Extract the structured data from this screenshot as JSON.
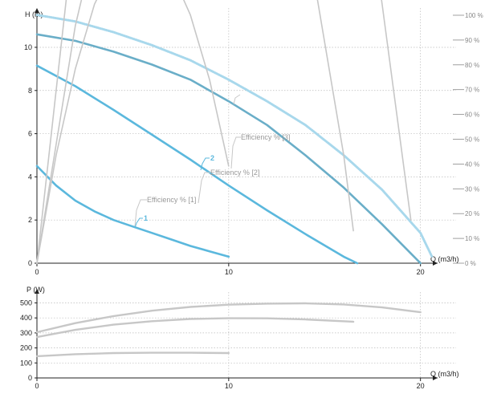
{
  "colors": {
    "pump_curve": "#5bb8dd",
    "max_curve": "#6aaec8",
    "efficiency_curve": "#c7c7c7",
    "power_curve": "#c7c7c7",
    "grid": "#bbbbbb",
    "text": "#222222",
    "secondary_text": "#888888"
  },
  "chart_data": [
    {
      "type": "line",
      "title": "",
      "ylabel": "H (m)",
      "xlabel": "Q (m3/h)",
      "xlim": [
        0,
        20.6
      ],
      "ylim": [
        0,
        11.3
      ],
      "xticks": [
        0,
        10,
        20
      ],
      "yticks": [
        0,
        2,
        4,
        6,
        8,
        10
      ],
      "y2lim": [
        0,
        100
      ],
      "y2ticks": [
        0,
        10,
        20,
        30,
        40,
        50,
        60,
        70,
        80,
        90,
        100
      ],
      "y2_tick_labels": [
        "0 %",
        "10 %",
        "20 %",
        "30 %",
        "40 %",
        "50 %",
        "60 %",
        "70 %",
        "80 %",
        "90 %",
        "100 %"
      ],
      "grid": true,
      "series": [
        {
          "id": "1",
          "kind": "head",
          "x": [
            0,
            1,
            2,
            3,
            4,
            5,
            6,
            7,
            8,
            9,
            10
          ],
          "y": [
            4.5,
            3.6,
            2.9,
            2.4,
            2.0,
            1.7,
            1.4,
            1.1,
            0.8,
            0.55,
            0.3
          ]
        },
        {
          "id": "2",
          "kind": "head",
          "x": [
            0,
            2,
            4,
            6,
            8,
            10,
            12,
            14,
            16,
            16.7
          ],
          "y": [
            9.15,
            8.2,
            7.1,
            5.95,
            4.8,
            3.6,
            2.45,
            1.35,
            0.3,
            0
          ]
        },
        {
          "id": "3",
          "kind": "head",
          "x": [
            0,
            2,
            4,
            6,
            8,
            10,
            12,
            14,
            16,
            18,
            19,
            20
          ],
          "y": [
            10.6,
            10.3,
            9.8,
            9.2,
            8.5,
            7.5,
            6.4,
            5.0,
            3.5,
            1.8,
            0.9,
            0
          ]
        },
        {
          "id": "max",
          "kind": "head-max",
          "x": [
            0,
            2,
            4,
            6,
            8,
            10,
            12,
            14,
            16,
            18,
            20,
            20.6
          ],
          "y": [
            11.5,
            11.2,
            10.7,
            10.1,
            9.4,
            8.5,
            7.5,
            6.4,
            5.0,
            3.4,
            1.4,
            0.3
          ]
        },
        {
          "id": "eff1",
          "kind": "efficiency",
          "label": "Efficiency % [1]",
          "x": [
            0,
            1,
            2,
            3,
            4,
            5,
            6,
            7,
            8,
            9,
            10
          ],
          "y": [
            0,
            5,
            9,
            12,
            13.8,
            14.6,
            14.5,
            13.5,
            11.5,
            8.5,
            4.5
          ]
        },
        {
          "id": "eff2",
          "kind": "efficiency",
          "label": "Efficiency % [2]",
          "x": [
            0,
            2,
            4,
            6,
            8,
            10,
            12,
            14,
            16,
            16.5
          ],
          "y": [
            0,
            11,
            18.5,
            22.8,
            25,
            24.8,
            22,
            15.5,
            5,
            1.5
          ]
        },
        {
          "id": "eff3",
          "kind": "efficiency",
          "label": "Efficiency % [3]",
          "x": [
            0,
            2,
            4,
            6,
            8,
            10,
            12,
            14,
            16,
            18,
            19.5
          ],
          "y": [
            0,
            16,
            28,
            36,
            40,
            40.5,
            38.5,
            33,
            25,
            12,
            2
          ]
        }
      ],
      "curve_ids": [
        "1",
        "2"
      ]
    },
    {
      "type": "line",
      "title": "",
      "ylabel": "P (W)",
      "xlabel": "Q (m3/h)",
      "xlim": [
        0,
        20.6
      ],
      "ylim": [
        0,
        540
      ],
      "xticks": [
        0,
        10,
        20
      ],
      "yticks": [
        0,
        100,
        200,
        300,
        400,
        500
      ],
      "grid": true,
      "series": [
        {
          "id": "p1",
          "x": [
            0,
            2,
            4,
            6,
            8,
            10
          ],
          "y": [
            145,
            158,
            166,
            168,
            168,
            166
          ]
        },
        {
          "id": "p2",
          "x": [
            0,
            2,
            4,
            6,
            8,
            10,
            12,
            14,
            16.5
          ],
          "y": [
            272,
            320,
            355,
            378,
            393,
            398,
            397,
            390,
            375
          ]
        },
        {
          "id": "p3",
          "x": [
            0,
            2,
            4,
            6,
            8,
            10,
            12,
            14,
            16,
            18,
            20
          ],
          "y": [
            305,
            365,
            412,
            448,
            473,
            488,
            495,
            497,
            490,
            470,
            438
          ]
        }
      ]
    }
  ]
}
